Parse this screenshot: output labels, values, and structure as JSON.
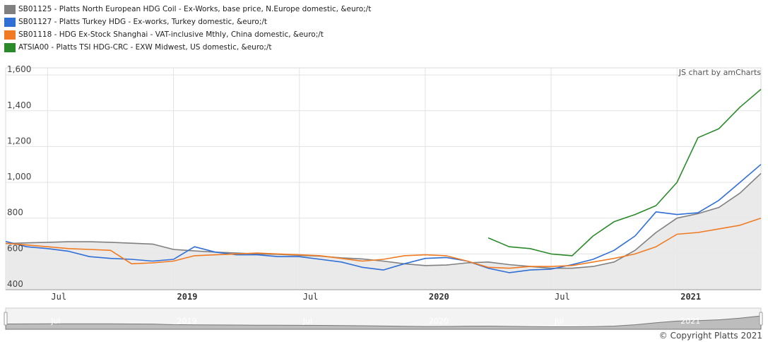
{
  "chart_data": {
    "type": "line",
    "credit": "JS chart by amCharts",
    "copyright": "© Copyright Platts 2021",
    "x_range": [
      "2018-05",
      "2021-05"
    ],
    "ylim": [
      400,
      1640
    ],
    "yticks": [
      {
        "value": 400,
        "label": "400"
      },
      {
        "value": 600,
        "label": "600"
      },
      {
        "value": 800,
        "label": "800"
      },
      {
        "value": 1000,
        "label": "1,000"
      },
      {
        "value": 1200,
        "label": "1,200"
      },
      {
        "value": 1400,
        "label": "1,400"
      },
      {
        "value": 1600,
        "label": "1,600"
      }
    ],
    "xticks": [
      {
        "date": "2018-07",
        "label": "Jul",
        "bold": false
      },
      {
        "date": "2019-01",
        "label": "2019",
        "bold": true
      },
      {
        "date": "2019-07",
        "label": "Jul",
        "bold": false
      },
      {
        "date": "2020-01",
        "label": "2020",
        "bold": true
      },
      {
        "date": "2020-07",
        "label": "Jul",
        "bold": false
      },
      {
        "date": "2021-01",
        "label": "2021",
        "bold": true
      }
    ],
    "navigator_labels": [
      "Jul",
      "2019",
      "Jul",
      "2020",
      "Jul",
      "2021"
    ],
    "grid": true,
    "legend_position": "top-left",
    "series": [
      {
        "name": "SB01125 - Platts North European HDG Coil - Ex-Works, base price, N.Europe domestic, &euro;/t",
        "color": "#808080",
        "area": true,
        "x": [
          "2018-05",
          "2018-06",
          "2018-07",
          "2018-08",
          "2018-09",
          "2018-10",
          "2018-11",
          "2018-12",
          "2019-01",
          "2019-02",
          "2019-03",
          "2019-04",
          "2019-05",
          "2019-06",
          "2019-07",
          "2019-08",
          "2019-09",
          "2019-10",
          "2019-11",
          "2019-12",
          "2020-01",
          "2020-02",
          "2020-03",
          "2020-04",
          "2020-05",
          "2020-06",
          "2020-07",
          "2020-08",
          "2020-09",
          "2020-10",
          "2020-11",
          "2020-12",
          "2021-01",
          "2021-02",
          "2021-03",
          "2021-04",
          "2021-05"
        ],
        "values": [
          658,
          662,
          665,
          668,
          668,
          665,
          660,
          655,
          625,
          617,
          610,
          605,
          600,
          598,
          592,
          588,
          578,
          572,
          560,
          545,
          535,
          538,
          550,
          555,
          540,
          530,
          520,
          520,
          530,
          555,
          620,
          720,
          800,
          825,
          860,
          940,
          1050
        ]
      },
      {
        "name": "SB01127 - Platts Turkey HDG - Ex-works, Turkey domestic, &euro;/t",
        "color": "#2f6fd6",
        "area": false,
        "x": [
          "2018-05",
          "2018-06",
          "2018-07",
          "2018-08",
          "2018-09",
          "2018-10",
          "2018-11",
          "2018-12",
          "2019-01",
          "2019-02",
          "2019-03",
          "2019-04",
          "2019-05",
          "2019-06",
          "2019-07",
          "2019-08",
          "2019-09",
          "2019-10",
          "2019-11",
          "2019-12",
          "2020-01",
          "2020-02",
          "2020-03",
          "2020-04",
          "2020-05",
          "2020-06",
          "2020-07",
          "2020-08",
          "2020-09",
          "2020-10",
          "2020-11",
          "2020-12",
          "2021-01",
          "2021-02",
          "2021-03",
          "2021-04",
          "2021-05"
        ],
        "values": [
          670,
          640,
          630,
          615,
          585,
          575,
          570,
          560,
          570,
          640,
          610,
          595,
          595,
          585,
          585,
          570,
          555,
          525,
          510,
          545,
          575,
          580,
          560,
          520,
          495,
          510,
          515,
          540,
          570,
          620,
          700,
          835,
          820,
          830,
          900,
          1000,
          1100
        ]
      },
      {
        "name": "SB01118 - HDG Ex-Stock Shanghai - VAT-inclusive Mthly, China domestic, &euro;/t",
        "color": "#f07b22",
        "area": false,
        "x": [
          "2018-05",
          "2018-06",
          "2018-07",
          "2018-08",
          "2018-09",
          "2018-10",
          "2018-11",
          "2018-12",
          "2019-01",
          "2019-02",
          "2019-03",
          "2019-04",
          "2019-05",
          "2019-06",
          "2019-07",
          "2019-08",
          "2019-09",
          "2019-10",
          "2019-11",
          "2019-12",
          "2020-01",
          "2020-02",
          "2020-03",
          "2020-04",
          "2020-05",
          "2020-06",
          "2020-07",
          "2020-08",
          "2020-09",
          "2020-10",
          "2020-11",
          "2020-12",
          "2021-01",
          "2021-02",
          "2021-03",
          "2021-04",
          "2021-05"
        ],
        "values": [
          660,
          650,
          640,
          630,
          625,
          620,
          545,
          550,
          560,
          590,
          595,
          600,
          605,
          600,
          595,
          590,
          575,
          560,
          570,
          590,
          595,
          590,
          560,
          525,
          520,
          530,
          530,
          535,
          555,
          575,
          600,
          640,
          710,
          720,
          740,
          760,
          800
        ]
      },
      {
        "name": "ATSIA00 - Platts TSI HDG-CRC - EXW Midwest, US domestic, &euro;/t",
        "color": "#2a8a2a",
        "area": false,
        "x": [
          "2020-04",
          "2020-05",
          "2020-06",
          "2020-07",
          "2020-08",
          "2020-09",
          "2020-10",
          "2020-11",
          "2020-12",
          "2021-01",
          "2021-02",
          "2021-03",
          "2021-04",
          "2021-05"
        ],
        "values": [
          690,
          640,
          630,
          600,
          590,
          700,
          780,
          820,
          870,
          1000,
          1250,
          1300,
          1420,
          1520
        ]
      }
    ]
  }
}
